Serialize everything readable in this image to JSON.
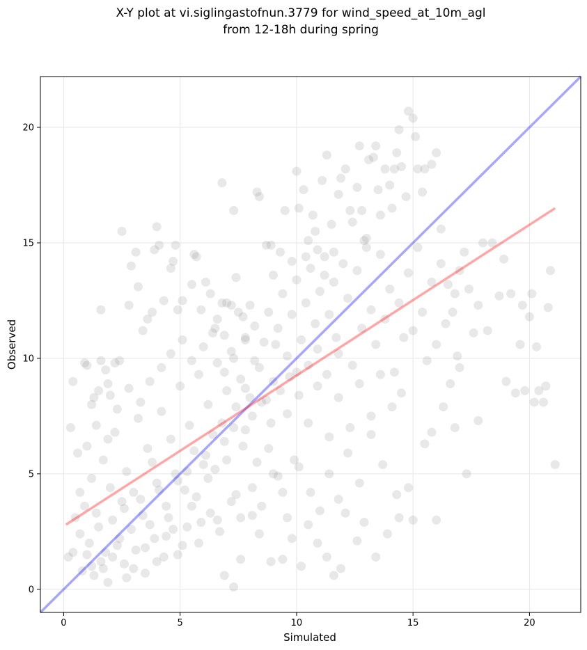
{
  "chart_data": {
    "type": "scatter",
    "title": "X-Y plot at vi.siglingastofnun.3779 for wind_speed_at_10m_agl",
    "subtitle": "from 12-18h during spring",
    "xlabel": "Simulated",
    "ylabel": "Observed",
    "xlim": [
      -1.0,
      22.2
    ],
    "ylim": [
      -1.0,
      22.2
    ],
    "xticks": [
      0,
      5,
      10,
      15,
      20
    ],
    "yticks": [
      0,
      5,
      10,
      15,
      20
    ],
    "grid": true,
    "point_color": "#808080",
    "identity_line": {
      "x": [
        -1.0,
        22.2
      ],
      "y": [
        -1.0,
        22.2
      ],
      "color": "#0000ff"
    },
    "fit_line": {
      "x": [
        0.1,
        21.1
      ],
      "y": [
        2.8,
        16.5
      ],
      "color": "#ff0000"
    },
    "points": [
      [
        0.3,
        7.0
      ],
      [
        0.4,
        9.0
      ],
      [
        0.6,
        5.9
      ],
      [
        0.7,
        4.2
      ],
      [
        0.9,
        9.8
      ],
      [
        1.0,
        9.7
      ],
      [
        1.0,
        6.2
      ],
      [
        1.2,
        8.0
      ],
      [
        1.3,
        8.3
      ],
      [
        1.5,
        8.6
      ],
      [
        1.6,
        9.9
      ],
      [
        1.6,
        12.1
      ],
      [
        1.8,
        9.5
      ],
      [
        1.9,
        8.9
      ],
      [
        2.0,
        8.4
      ],
      [
        2.2,
        9.8
      ],
      [
        2.4,
        9.9
      ],
      [
        2.5,
        15.5
      ],
      [
        2.8,
        12.3
      ],
      [
        2.9,
        14.0
      ],
      [
        3.1,
        14.6
      ],
      [
        3.2,
        13.1
      ],
      [
        3.4,
        11.2
      ],
      [
        3.6,
        11.7
      ],
      [
        3.8,
        12.0
      ],
      [
        3.9,
        14.7
      ],
      [
        4.0,
        15.7
      ],
      [
        4.1,
        14.9
      ],
      [
        4.3,
        12.5
      ],
      [
        4.6,
        13.9
      ],
      [
        4.7,
        14.2
      ],
      [
        4.8,
        14.9
      ],
      [
        4.9,
        12.1
      ],
      [
        5.1,
        12.5
      ],
      [
        5.5,
        13.2
      ],
      [
        5.6,
        14.5
      ],
      [
        5.7,
        14.4
      ],
      [
        5.9,
        12.1
      ],
      [
        6.1,
        13.3
      ],
      [
        6.3,
        12.8
      ],
      [
        6.5,
        11.3
      ],
      [
        6.6,
        11.7
      ],
      [
        6.8,
        12.4
      ],
      [
        6.9,
        11.0
      ],
      [
        7.0,
        12.4
      ],
      [
        7.2,
        12.3
      ],
      [
        7.4,
        13.5
      ],
      [
        7.5,
        12.0
      ],
      [
        7.7,
        11.8
      ],
      [
        7.8,
        10.8
      ],
      [
        6.8,
        17.6
      ],
      [
        7.3,
        16.4
      ],
      [
        8.0,
        12.3
      ],
      [
        8.3,
        17.2
      ],
      [
        8.4,
        17.0
      ],
      [
        8.7,
        14.9
      ],
      [
        8.9,
        14.9
      ],
      [
        9.0,
        13.6
      ],
      [
        9.3,
        14.6
      ],
      [
        9.5,
        16.4
      ],
      [
        9.8,
        14.2
      ],
      [
        10.0,
        18.1
      ],
      [
        10.1,
        16.5
      ],
      [
        10.3,
        17.3
      ],
      [
        10.4,
        14.4
      ],
      [
        10.5,
        15.1
      ],
      [
        10.7,
        16.2
      ],
      [
        10.8,
        15.5
      ],
      [
        10.9,
        14.7
      ],
      [
        11.1,
        17.7
      ],
      [
        11.2,
        13.6
      ],
      [
        11.3,
        18.8
      ],
      [
        11.5,
        15.8
      ],
      [
        11.6,
        14.6
      ],
      [
        11.8,
        17.1
      ],
      [
        11.9,
        17.8
      ],
      [
        12.1,
        18.2
      ],
      [
        12.3,
        16.4
      ],
      [
        12.4,
        15.9
      ],
      [
        12.6,
        17.4
      ],
      [
        12.7,
        19.2
      ],
      [
        12.8,
        16.4
      ],
      [
        12.9,
        15.1
      ],
      [
        13.0,
        14.8
      ],
      [
        13.1,
        18.6
      ],
      [
        13.3,
        18.7
      ],
      [
        13.4,
        19.2
      ],
      [
        13.5,
        17.3
      ],
      [
        13.6,
        16.2
      ],
      [
        13.8,
        18.2
      ],
      [
        14.0,
        17.5
      ],
      [
        14.1,
        16.5
      ],
      [
        14.2,
        18.2
      ],
      [
        14.3,
        18.9
      ],
      [
        14.4,
        19.9
      ],
      [
        14.5,
        18.3
      ],
      [
        14.7,
        17.0
      ],
      [
        14.8,
        20.7
      ],
      [
        15.0,
        20.4
      ],
      [
        15.1,
        19.6
      ],
      [
        15.2,
        18.2
      ],
      [
        15.4,
        17.2
      ],
      [
        15.5,
        18.2
      ],
      [
        15.8,
        18.4
      ],
      [
        16.0,
        18.9
      ],
      [
        16.2,
        15.6
      ],
      [
        16.5,
        13.2
      ],
      [
        16.7,
        12.0
      ],
      [
        16.9,
        10.1
      ],
      [
        17.0,
        13.8
      ],
      [
        17.2,
        14.6
      ],
      [
        17.4,
        13.0
      ],
      [
        17.6,
        11.1
      ],
      [
        17.8,
        12.3
      ],
      [
        18.0,
        15.0
      ],
      [
        18.2,
        11.2
      ],
      [
        18.4,
        15.0
      ],
      [
        18.7,
        12.7
      ],
      [
        18.9,
        14.3
      ],
      [
        19.0,
        9.0
      ],
      [
        19.2,
        12.8
      ],
      [
        19.4,
        8.5
      ],
      [
        19.6,
        10.6
      ],
      [
        19.7,
        12.3
      ],
      [
        19.8,
        8.6
      ],
      [
        20.0,
        11.8
      ],
      [
        20.1,
        12.8
      ],
      [
        20.2,
        8.1
      ],
      [
        20.3,
        10.5
      ],
      [
        20.4,
        8.6
      ],
      [
        20.6,
        8.1
      ],
      [
        20.7,
        8.8
      ],
      [
        20.8,
        12.2
      ],
      [
        20.9,
        13.8
      ],
      [
        21.1,
        5.4
      ],
      [
        16.8,
        7.0
      ],
      [
        17.3,
        5.0
      ],
      [
        17.8,
        7.3
      ],
      [
        16.0,
        3.0
      ],
      [
        15.0,
        3.0
      ],
      [
        14.4,
        3.1
      ],
      [
        13.9,
        2.4
      ],
      [
        13.4,
        1.4
      ],
      [
        12.9,
        2.9
      ],
      [
        12.6,
        2.1
      ],
      [
        12.1,
        3.3
      ],
      [
        11.9,
        0.9
      ],
      [
        11.6,
        0.6
      ],
      [
        11.3,
        1.4
      ],
      [
        10.9,
        2.0
      ],
      [
        10.5,
        2.8
      ],
      [
        10.2,
        1.0
      ],
      [
        9.8,
        2.2
      ],
      [
        9.4,
        1.3
      ],
      [
        8.9,
        1.2
      ],
      [
        8.4,
        2.4
      ],
      [
        8.1,
        3.2
      ],
      [
        7.6,
        1.3
      ],
      [
        7.3,
        0.1
      ],
      [
        6.9,
        0.6
      ],
      [
        14.8,
        4.4
      ],
      [
        15.5,
        6.3
      ],
      [
        16.3,
        7.9
      ],
      [
        15.8,
        6.8
      ],
      [
        14.3,
        4.1
      ],
      [
        13.7,
        5.4
      ],
      [
        13.2,
        6.7
      ],
      [
        12.7,
        4.6
      ],
      [
        12.2,
        5.9
      ],
      [
        11.8,
        3.9
      ],
      [
        11.4,
        5.0
      ],
      [
        11.0,
        3.4
      ],
      [
        10.6,
        4.2
      ],
      [
        10.1,
        5.3
      ],
      [
        9.6,
        3.1
      ],
      [
        9.2,
        4.9
      ],
      [
        8.8,
        6.1
      ],
      [
        8.3,
        5.5
      ],
      [
        7.8,
        6.9
      ],
      [
        7.4,
        4.1
      ],
      [
        7.0,
        5.6
      ],
      [
        6.6,
        3.0
      ],
      [
        6.2,
        4.8
      ],
      [
        5.9,
        2.9
      ],
      [
        5.5,
        3.6
      ],
      [
        5.1,
        1.9
      ],
      [
        4.7,
        2.6
      ],
      [
        4.3,
        1.4
      ],
      [
        3.9,
        2.2
      ],
      [
        3.5,
        0.7
      ],
      [
        3.1,
        1.7
      ],
      [
        2.7,
        0.5
      ],
      [
        2.3,
        1.9
      ],
      [
        1.9,
        0.3
      ],
      [
        1.6,
        1.2
      ],
      [
        1.3,
        0.6
      ],
      [
        1.0,
        1.5
      ],
      [
        0.7,
        2.4
      ],
      [
        0.4,
        1.6
      ],
      [
        0.2,
        1.4
      ],
      [
        0.5,
        3.1
      ],
      [
        0.9,
        3.6
      ],
      [
        1.2,
        4.8
      ],
      [
        1.4,
        3.3
      ],
      [
        1.7,
        5.6
      ],
      [
        2.0,
        4.4
      ],
      [
        2.2,
        6.8
      ],
      [
        2.5,
        3.8
      ],
      [
        2.7,
        5.1
      ],
      [
        3.0,
        4.2
      ],
      [
        3.2,
        7.4
      ],
      [
        3.4,
        3.2
      ],
      [
        3.6,
        6.1
      ],
      [
        3.8,
        5.5
      ],
      [
        4.0,
        4.6
      ],
      [
        4.2,
        7.7
      ],
      [
        4.4,
        3.6
      ],
      [
        4.6,
        6.5
      ],
      [
        4.8,
        5.0
      ],
      [
        5.0,
        8.8
      ],
      [
        5.2,
        4.3
      ],
      [
        5.4,
        7.1
      ],
      [
        5.6,
        6.0
      ],
      [
        5.8,
        9.3
      ],
      [
        6.0,
        5.4
      ],
      [
        6.2,
        8.0
      ],
      [
        6.4,
        6.7
      ],
      [
        6.6,
        9.8
      ],
      [
        6.8,
        7.2
      ],
      [
        7.0,
        8.6
      ],
      [
        7.2,
        10.3
      ],
      [
        7.4,
        7.9
      ],
      [
        7.6,
        9.1
      ],
      [
        7.8,
        10.9
      ],
      [
        8.0,
        8.3
      ],
      [
        8.2,
        11.4
      ],
      [
        8.4,
        9.6
      ],
      [
        8.6,
        10.7
      ],
      [
        8.8,
        12.0
      ],
      [
        9.0,
        9.0
      ],
      [
        9.2,
        11.3
      ],
      [
        9.4,
        12.8
      ],
      [
        9.6,
        10.1
      ],
      [
        9.8,
        11.9
      ],
      [
        10.0,
        13.4
      ],
      [
        10.2,
        10.8
      ],
      [
        10.4,
        12.4
      ],
      [
        10.6,
        13.9
      ],
      [
        10.8,
        11.5
      ],
      [
        11.0,
        12.9
      ],
      [
        11.2,
        14.4
      ],
      [
        11.4,
        11.9
      ],
      [
        11.6,
        13.3
      ],
      [
        11.8,
        10.2
      ],
      [
        12.0,
        14.1
      ],
      [
        12.2,
        12.6
      ],
      [
        12.4,
        9.7
      ],
      [
        12.6,
        13.8
      ],
      [
        12.8,
        11.3
      ],
      [
        13.0,
        15.2
      ],
      [
        13.2,
        12.1
      ],
      [
        13.4,
        10.6
      ],
      [
        13.6,
        14.5
      ],
      [
        13.8,
        11.7
      ],
      [
        14.0,
        13.0
      ],
      [
        14.2,
        9.4
      ],
      [
        14.4,
        12.4
      ],
      [
        14.6,
        10.9
      ],
      [
        14.8,
        13.7
      ],
      [
        15.0,
        11.2
      ],
      [
        15.2,
        14.8
      ],
      [
        15.4,
        12.0
      ],
      [
        15.6,
        9.9
      ],
      [
        15.8,
        13.3
      ],
      [
        16.0,
        10.6
      ],
      [
        16.2,
        14.1
      ],
      [
        16.4,
        11.5
      ],
      [
        16.6,
        8.9
      ],
      [
        16.8,
        12.8
      ],
      [
        17.0,
        9.6
      ],
      [
        0.8,
        0.8
      ],
      [
        1.1,
        2.0
      ],
      [
        1.5,
        2.7
      ],
      [
        1.8,
        1.6
      ],
      [
        2.1,
        3.0
      ],
      [
        2.4,
        2.2
      ],
      [
        2.6,
        3.5
      ],
      [
        2.9,
        2.6
      ],
      [
        3.3,
        3.9
      ],
      [
        3.7,
        2.8
      ],
      [
        4.1,
        4.3
      ],
      [
        4.5,
        3.1
      ],
      [
        4.9,
        4.7
      ],
      [
        5.3,
        5.1
      ],
      [
        5.7,
        4.0
      ],
      [
        6.1,
        5.8
      ],
      [
        6.5,
        5.2
      ],
      [
        6.9,
        6.4
      ],
      [
        7.3,
        7.0
      ],
      [
        7.7,
        6.2
      ],
      [
        8.1,
        7.5
      ],
      [
        8.5,
        8.1
      ],
      [
        8.9,
        7.2
      ],
      [
        9.3,
        8.6
      ],
      [
        9.7,
        9.2
      ],
      [
        10.1,
        8.4
      ],
      [
        10.5,
        9.7
      ],
      [
        10.9,
        10.4
      ],
      [
        11.3,
        9.3
      ],
      [
        11.7,
        10.9
      ],
      [
        1.4,
        7.1
      ],
      [
        1.9,
        6.5
      ],
      [
        2.3,
        7.8
      ],
      [
        2.8,
        8.7
      ],
      [
        3.3,
        8.1
      ],
      [
        3.7,
        9.0
      ],
      [
        4.2,
        9.6
      ],
      [
        4.6,
        10.2
      ],
      [
        5.1,
        10.8
      ],
      [
        5.5,
        9.9
      ],
      [
        6.0,
        10.5
      ],
      [
        6.4,
        11.1
      ],
      [
        6.9,
        9.4
      ],
      [
        7.3,
        10.0
      ],
      [
        7.8,
        8.7
      ],
      [
        8.2,
        9.9
      ],
      [
        8.7,
        8.2
      ],
      [
        9.1,
        10.6
      ],
      [
        9.6,
        7.6
      ],
      [
        10.0,
        9.4
      ],
      [
        10.5,
        7.2
      ],
      [
        10.9,
        8.8
      ],
      [
        11.4,
        6.6
      ],
      [
        11.8,
        8.3
      ],
      [
        12.3,
        7.0
      ],
      [
        12.7,
        8.9
      ],
      [
        13.2,
        7.5
      ],
      [
        13.6,
        9.3
      ],
      [
        14.1,
        7.9
      ],
      [
        14.5,
        8.5
      ],
      [
        1.2,
        1.0
      ],
      [
        1.7,
        0.9
      ],
      [
        2.1,
        1.4
      ],
      [
        2.6,
        1.1
      ],
      [
        3.0,
        0.9
      ],
      [
        3.5,
        1.8
      ],
      [
        4.0,
        1.2
      ],
      [
        4.4,
        2.3
      ],
      [
        4.9,
        1.5
      ],
      [
        5.3,
        2.7
      ],
      [
        5.8,
        2.0
      ],
      [
        6.3,
        3.3
      ],
      [
        6.7,
        2.5
      ],
      [
        7.2,
        3.8
      ],
      [
        7.6,
        3.1
      ],
      [
        8.1,
        4.4
      ],
      [
        8.5,
        3.6
      ],
      [
        9.0,
        5.0
      ],
      [
        9.4,
        4.2
      ],
      [
        9.9,
        5.6
      ]
    ]
  }
}
